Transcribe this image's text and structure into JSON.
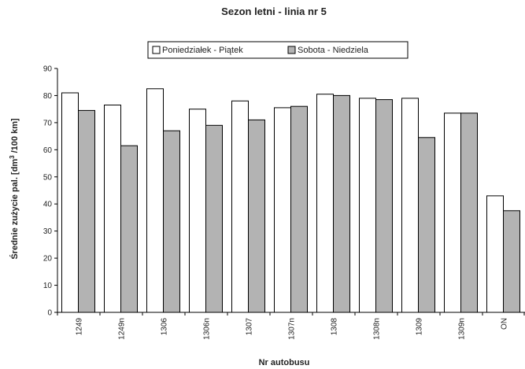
{
  "chart_data": {
    "type": "bar",
    "title": "Sezon letni - linia nr 5",
    "xlabel": "Nr autobusu",
    "ylabel_main": "Średnie zużycie pal.  [dm",
    "ylabel_sup": "3",
    "ylabel_tail": " /100 km]",
    "ylim": [
      0,
      90
    ],
    "yticks": [
      0,
      10,
      20,
      30,
      40,
      50,
      60,
      70,
      80,
      90
    ],
    "grid": false,
    "legend_position": "top",
    "categories": [
      "1249",
      "1249n",
      "1306",
      "1306n",
      "1307",
      "1307n",
      "1308",
      "1308n",
      "1309",
      "1309n",
      "ON"
    ],
    "series": [
      {
        "name": "Poniedziałek - Piątek",
        "color": "#ffffff",
        "values": [
          81,
          76.5,
          82.5,
          75,
          78,
          75.5,
          80.5,
          79,
          79,
          73.5,
          43
        ]
      },
      {
        "name": "Sobota - Niedziela",
        "color": "#b3b3b3",
        "values": [
          74.5,
          61.5,
          67,
          69,
          71,
          76,
          80,
          78.5,
          64.5,
          73.5,
          37.5
        ]
      }
    ]
  }
}
